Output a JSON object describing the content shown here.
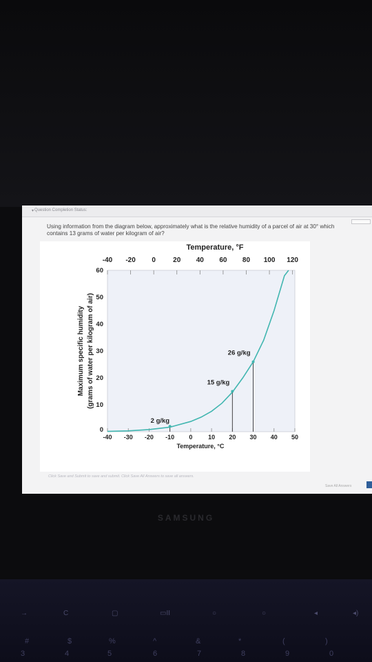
{
  "status": {
    "toggle": "▾",
    "label": "Question Completion Status:"
  },
  "question": {
    "text": "Using information from the diagram below, approximately what is the relative humidity of a parcel of air at 30° which contains 13 grams of water per kilogram of air?"
  },
  "chart_data": {
    "type": "line",
    "title_top": "Temperature, °F",
    "top_ticks": [
      "-40",
      "-20",
      "0",
      "20",
      "40",
      "60",
      "80",
      "100",
      "120"
    ],
    "xlabel": "Temperature, °C",
    "x_ticks": [
      "-40",
      "-30",
      "-20",
      "-10",
      "0",
      "10",
      "20",
      "30",
      "40",
      "50"
    ],
    "ylabel_line1": "Maximum specific humidity",
    "ylabel_line2": "(grams of water per kilogram of air)",
    "y_ticks": [
      "0",
      "10",
      "20",
      "30",
      "40",
      "50",
      "60"
    ],
    "xlim": [
      -40,
      50
    ],
    "ylim": [
      0,
      60
    ],
    "grid": false,
    "series": [
      {
        "color": "#41b6b0",
        "x": [
          -40,
          -30,
          -20,
          -10,
          0,
          5,
          10,
          15,
          20,
          25,
          30,
          35,
          40,
          45,
          47
        ],
        "y": [
          0.1,
          0.3,
          0.8,
          1.7,
          3.8,
          5.4,
          7.6,
          10.6,
          14.7,
          20.0,
          26.0,
          34.0,
          45.0,
          58.0,
          60.0
        ]
      }
    ],
    "annotations": [
      {
        "text": "2 g/kg",
        "x": -10,
        "y": 2
      },
      {
        "text": "15 g/kg",
        "x": 20,
        "y": 15
      },
      {
        "text": "26 g/kg",
        "x": 30,
        "y": 26
      }
    ],
    "marker_color": "#41b6b0"
  },
  "footer": {
    "note": "Click Save and Submit to save and submit. Click Save All Answers to save all answers.",
    "save_all": "Save All Answers"
  },
  "brand": "SAMSUNG",
  "keyboard": {
    "row1": [
      "→",
      "C",
      "▢",
      "▭II",
      "○",
      "○",
      "◂",
      "◂)"
    ],
    "row2_symbols": [
      "#",
      "$",
      "%",
      "^",
      "&",
      "*",
      "(",
      ")"
    ],
    "row2_numbers": [
      "3",
      "4",
      "5",
      "6",
      "7",
      "8",
      "9",
      "0"
    ]
  }
}
